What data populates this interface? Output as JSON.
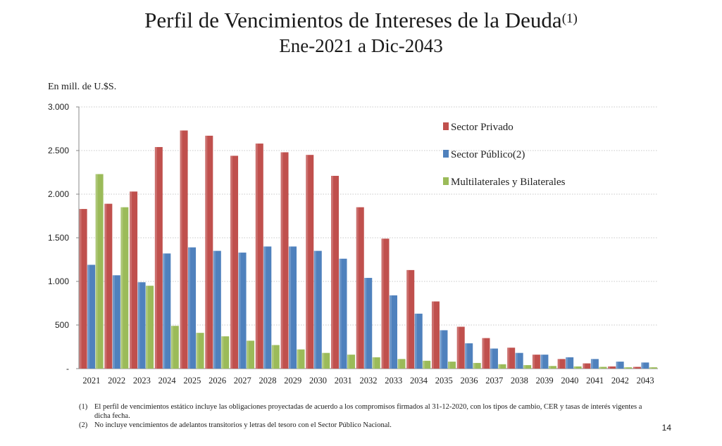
{
  "title": "Perfil de Vencimientos de Intereses de la Deuda",
  "title_note": "(1)",
  "subtitle": "Ene-2021 a Dic-2043",
  "unit_label": "En mill. de U.$S.",
  "chart_data": {
    "type": "bar",
    "title": "Perfil de Vencimientos de Intereses de la Deuda(1)",
    "subtitle": "Ene-2021 a Dic-2043",
    "ylabel": "En mill. de U.$S.",
    "ylim": [
      0,
      3000
    ],
    "yticks": [
      0,
      500,
      1000,
      1500,
      2000,
      2500,
      3000
    ],
    "ytick_labels": [
      "-",
      "500",
      "1.000",
      "1.500",
      "2.000",
      "2.500",
      "3.000"
    ],
    "grid": true,
    "legend_position": "top-right",
    "categories": [
      "2021",
      "2022",
      "2023",
      "2024",
      "2025",
      "2026",
      "2027",
      "2028",
      "2029",
      "2030",
      "2031",
      "2032",
      "2033",
      "2034",
      "2035",
      "2036",
      "2037",
      "2038",
      "2039",
      "2040",
      "2041",
      "2042",
      "2043"
    ],
    "series": [
      {
        "name": "Sector Privado",
        "color": "#c0504d",
        "values": [
          1830,
          1890,
          2030,
          2540,
          2730,
          2670,
          2440,
          2580,
          2480,
          2450,
          2210,
          1850,
          1490,
          1130,
          770,
          480,
          350,
          240,
          160,
          110,
          60,
          25,
          20
        ]
      },
      {
        "name": "Sector Público(2)",
        "color": "#4f81bd",
        "values": [
          1190,
          1070,
          990,
          1320,
          1390,
          1350,
          1330,
          1400,
          1400,
          1350,
          1260,
          1040,
          840,
          630,
          440,
          290,
          230,
          180,
          160,
          130,
          110,
          80,
          70
        ]
      },
      {
        "name": "Multilaterales y Bilaterales",
        "color": "#9bbb59",
        "values": [
          2230,
          1850,
          950,
          490,
          410,
          370,
          320,
          270,
          220,
          180,
          160,
          130,
          110,
          90,
          80,
          65,
          50,
          40,
          30,
          25,
          20,
          15,
          15
        ]
      }
    ]
  },
  "footnotes": [
    {
      "num": "(1)",
      "text": "El perfil de vencimientos estático incluye las obligaciones proyectadas de acuerdo a los compromisos firmados al 31-12-2020, con los tipos de cambio, CER y tasas de interés vigentes a dicha fecha."
    },
    {
      "num": "(2)",
      "text": "No incluye vencimientos de adelantos transitorios y letras del tesoro con el Sector Público Nacional."
    }
  ],
  "page_number": "14"
}
